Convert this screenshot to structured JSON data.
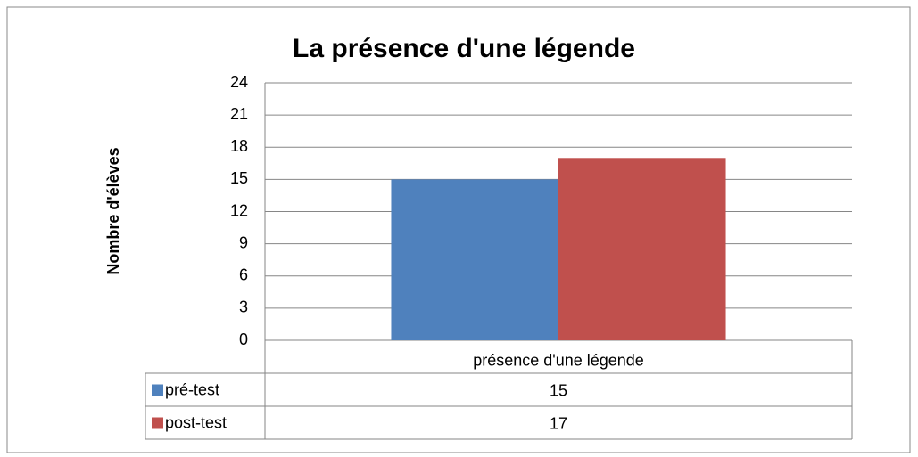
{
  "chart_data": {
    "type": "bar",
    "title": "La présence d'une légende",
    "y_label": "Nombre d'élèves",
    "categories": [
      "présence d'une légende"
    ],
    "series": [
      {
        "name": "pré-test",
        "color": "#4f81bd",
        "values": [
          15
        ]
      },
      {
        "name": "post-test",
        "color": "#c0504d",
        "values": [
          17
        ]
      }
    ],
    "ylim": [
      0,
      24
    ],
    "yticks": [
      0,
      3,
      6,
      9,
      12,
      15,
      18,
      21,
      24
    ],
    "grid": true,
    "data_table": true
  }
}
